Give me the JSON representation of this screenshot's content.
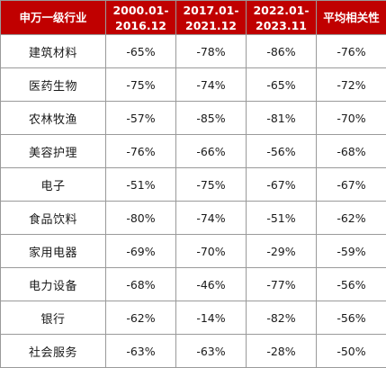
{
  "table": {
    "headers": [
      {
        "lines": [
          "申万一级行业"
        ]
      },
      {
        "lines": [
          "2000.01-",
          "2016.12"
        ]
      },
      {
        "lines": [
          "2017.01-",
          "2021.12"
        ]
      },
      {
        "lines": [
          "2022.01-",
          "2023.11"
        ]
      },
      {
        "lines": [
          "平均相关性"
        ]
      }
    ],
    "rows": [
      [
        "建筑材料",
        "-65%",
        "-78%",
        "-86%",
        "-76%"
      ],
      [
        "医药生物",
        "-75%",
        "-74%",
        "-65%",
        "-72%"
      ],
      [
        "农林牧渔",
        "-57%",
        "-85%",
        "-81%",
        "-70%"
      ],
      [
        "美容护理",
        "-76%",
        "-66%",
        "-56%",
        "-68%"
      ],
      [
        "电子",
        "-51%",
        "-75%",
        "-67%",
        "-67%"
      ],
      [
        "食品饮料",
        "-80%",
        "-74%",
        "-51%",
        "-62%"
      ],
      [
        "家用电器",
        "-69%",
        "-70%",
        "-29%",
        "-59%"
      ],
      [
        "电力设备",
        "-68%",
        "-46%",
        "-77%",
        "-56%"
      ],
      [
        "银行",
        "-62%",
        "-14%",
        "-82%",
        "-56%"
      ],
      [
        "社会服务",
        "-63%",
        "-63%",
        "-28%",
        "-50%"
      ]
    ]
  },
  "colors": {
    "header_bg": "#c00000",
    "header_text": "#ffffff",
    "grid": "#9a9a9a"
  }
}
